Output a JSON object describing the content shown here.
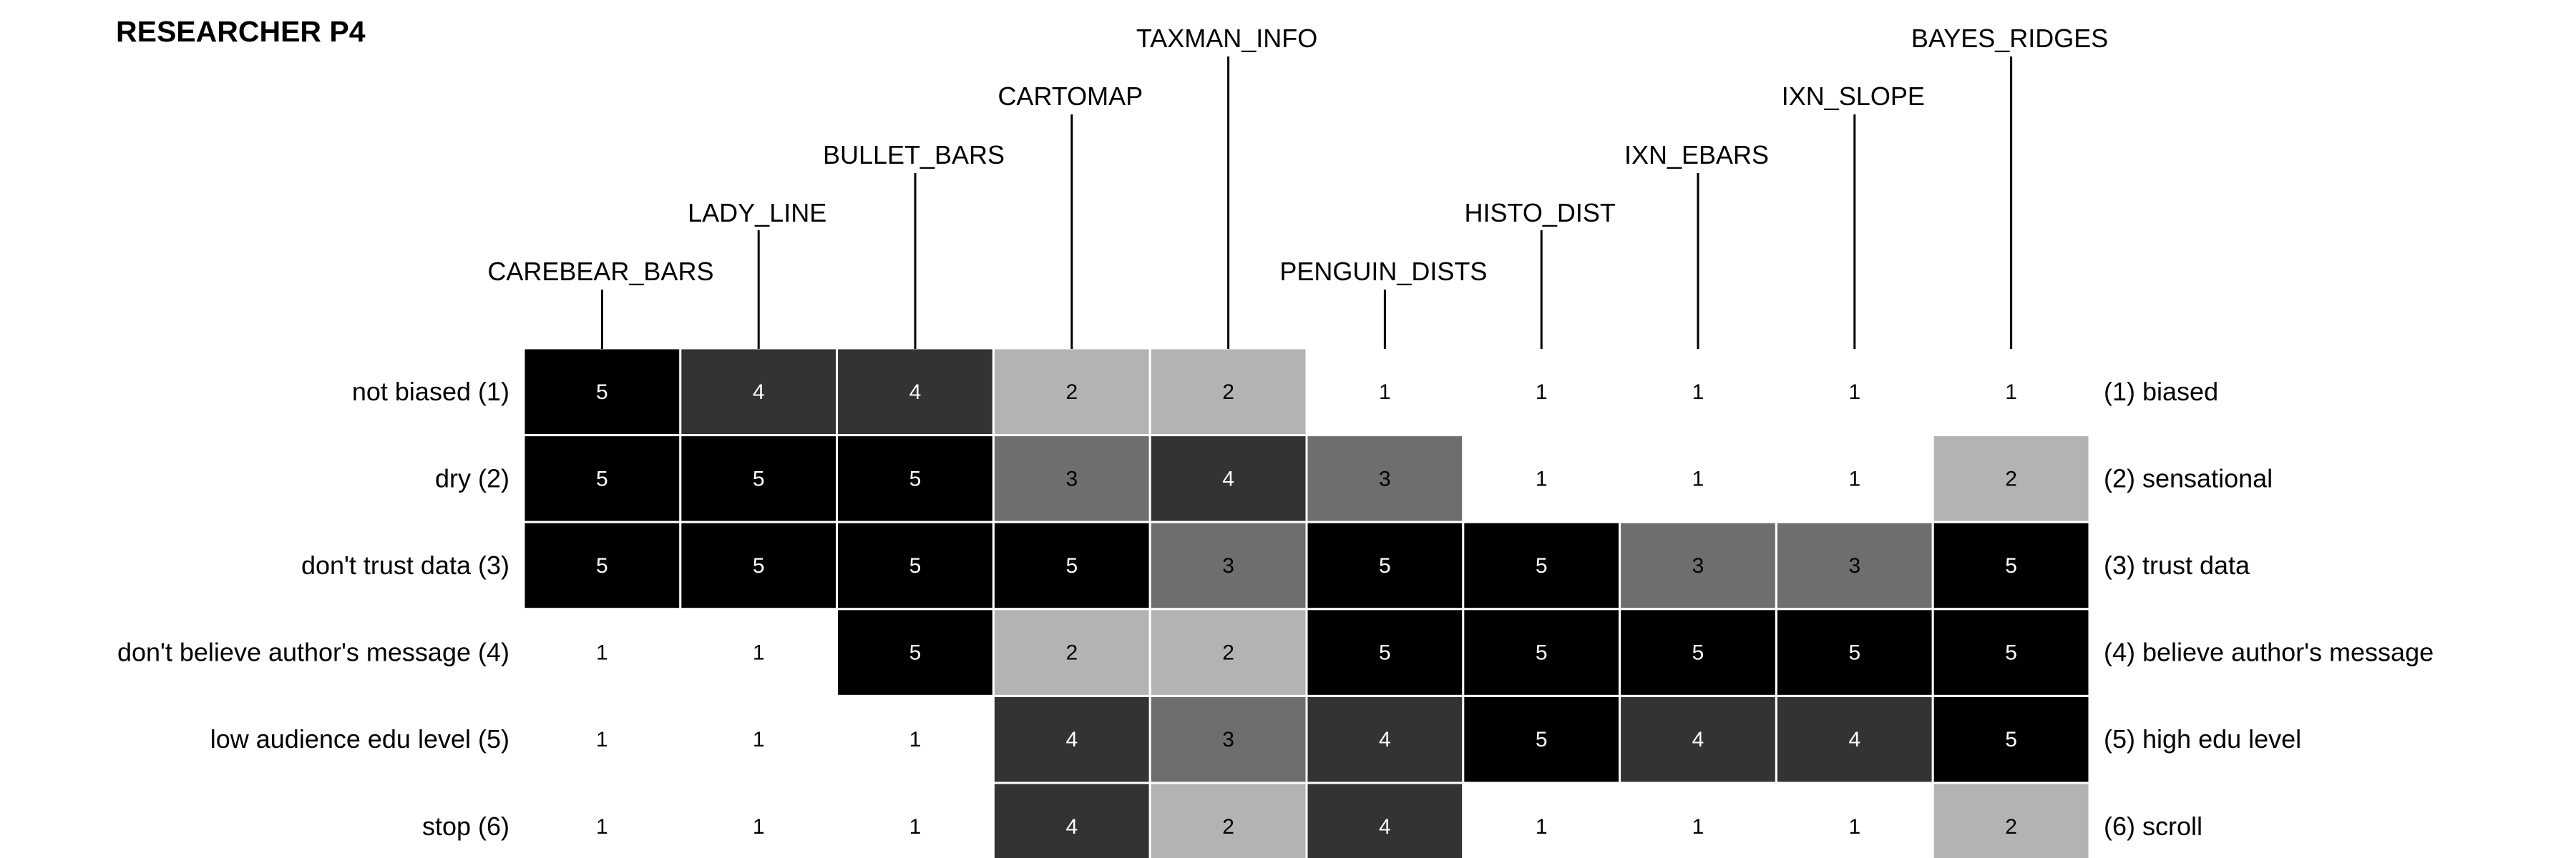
{
  "title": "RESEARCHER P4",
  "chart_data": {
    "type": "heatmap",
    "title": "RESEARCHER P4",
    "columns": [
      "CAREBEAR_BARS",
      "LADY_LINE",
      "BULLET_BARS",
      "CARTOMAP",
      "TAXMAN_INFO",
      "PENGUIN_DISTS",
      "HISTO_DIST",
      "IXN_EBARS",
      "IXN_SLOPE",
      "BAYES_RIDGES"
    ],
    "rows_left": [
      "not biased (1)",
      "dry (2)",
      "don't trust data (3)",
      "don't believe author's message (4)",
      "low audience edu level (5)",
      "stop (6)"
    ],
    "rows_right": [
      "(1) biased",
      "(2) sensational",
      "(3) trust data",
      "(4) believe author's message",
      "(5) high edu level",
      "(6) scroll"
    ],
    "values": [
      [
        5,
        4,
        4,
        2,
        2,
        1,
        1,
        1,
        1,
        1
      ],
      [
        5,
        5,
        5,
        3,
        4,
        3,
        1,
        1,
        1,
        2
      ],
      [
        5,
        5,
        5,
        5,
        3,
        5,
        5,
        3,
        3,
        5
      ],
      [
        1,
        1,
        5,
        2,
        2,
        5,
        5,
        5,
        5,
        5
      ],
      [
        1,
        1,
        1,
        4,
        3,
        4,
        5,
        4,
        4,
        5
      ],
      [
        1,
        1,
        1,
        4,
        2,
        4,
        1,
        1,
        1,
        2
      ]
    ],
    "value_range": [
      1,
      5
    ],
    "color_scale": {
      "1": "#ffffff",
      "2": "#b3b3b3",
      "3": "#6e6e6e",
      "4": "#333333",
      "5": "#000000"
    },
    "grid": false,
    "legend": "none"
  }
}
